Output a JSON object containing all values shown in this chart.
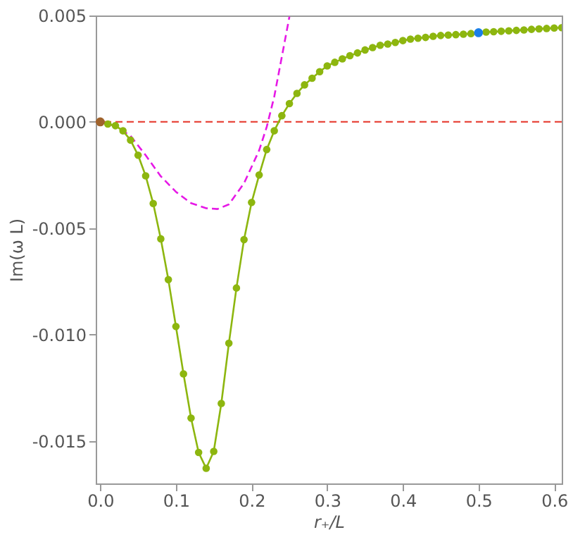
{
  "chart_data": {
    "type": "line",
    "xlabel": "r₊/L",
    "ylabel": "Im(ω L)",
    "xlim": [
      -0.006,
      0.61
    ],
    "ylim": [
      -0.017,
      0.005
    ],
    "xticks": [
      {
        "value": 0,
        "label": "0.0"
      },
      {
        "value": 0.1,
        "label": "0.1"
      },
      {
        "value": 0.2,
        "label": "0.2"
      },
      {
        "value": 0.3,
        "label": "0.3"
      },
      {
        "value": 0.4,
        "label": "0.4"
      },
      {
        "value": 0.5,
        "label": "0.5"
      },
      {
        "value": 0.6,
        "label": "0.6"
      }
    ],
    "yticks": [
      {
        "value": 0.005,
        "label": "0.005"
      },
      {
        "value": 0,
        "label": "0.000"
      },
      {
        "value": -0.005,
        "label": "-0.005"
      },
      {
        "value": -0.01,
        "label": "-0.010"
      },
      {
        "value": -0.015,
        "label": "-0.015"
      }
    ],
    "ref_lines": [
      {
        "axis": "y",
        "value": 0,
        "color": "#e8473c",
        "line_style": "dashed"
      }
    ],
    "series": [
      {
        "type": "line",
        "color": "#e619e6",
        "line_style": "dashed",
        "marker": "none",
        "x": [
          0,
          0.02,
          0.04,
          0.06,
          0.08,
          0.1,
          0.12,
          0.14,
          0.155,
          0.17,
          0.19,
          0.21,
          0.22,
          0.23,
          0.24,
          0.25
        ],
        "values": [
          0,
          -0.0002,
          -0.00066,
          -0.00157,
          -0.00256,
          -0.00329,
          -0.00382,
          -0.00406,
          -0.0041,
          -0.00388,
          -0.00289,
          -0.00134,
          -0.00024,
          0.00119,
          0.00306,
          0.00494
        ]
      },
      {
        "color": "#8db60f",
        "line_style": "solid",
        "marker": "circle",
        "x": [
          0,
          0.01,
          0.02,
          0.03,
          0.04,
          0.05,
          0.06,
          0.07,
          0.08,
          0.09,
          0.1,
          0.11,
          0.12,
          0.13,
          0.14,
          0.15,
          0.16,
          0.17,
          0.18,
          0.19,
          0.2,
          0.21,
          0.22,
          0.23,
          0.24,
          0.25,
          0.26,
          0.27,
          0.28,
          0.29,
          0.3,
          0.31,
          0.32,
          0.33,
          0.34,
          0.35,
          0.36,
          0.37,
          0.38,
          0.39,
          0.4,
          0.41,
          0.42,
          0.43,
          0.44,
          0.45,
          0.46,
          0.47,
          0.48,
          0.49,
          0.5,
          0.51,
          0.52,
          0.53,
          0.54,
          0.55,
          0.56,
          0.57,
          0.58,
          0.59,
          0.6,
          0.61
        ],
        "values": [
          0,
          -0.0001,
          -0.00018,
          -0.00042,
          -0.00086,
          -0.00157,
          -0.00254,
          -0.00384,
          -0.0055,
          -0.00742,
          -0.00962,
          -0.01185,
          -0.01393,
          -0.01554,
          -0.01629,
          -0.01549,
          -0.01324,
          -0.01041,
          -0.00781,
          -0.00554,
          -0.00379,
          -0.0025,
          -0.0013,
          -0.00042,
          0.00029,
          0.00086,
          0.00134,
          0.00174,
          0.00205,
          0.00236,
          0.00263,
          0.0028,
          0.00296,
          0.00311,
          0.00324,
          0.00338,
          0.00349,
          0.0036,
          0.00366,
          0.00373,
          0.00382,
          0.00389,
          0.00393,
          0.00397,
          0.00402,
          0.00406,
          0.00408,
          0.0041,
          0.00412,
          0.00415,
          0.00419,
          0.00422,
          0.00424,
          0.00426,
          0.00428,
          0.0043,
          0.00432,
          0.00435,
          0.00437,
          0.00439,
          0.00441,
          0.00443
        ]
      },
      {
        "type": "scatter",
        "color": "#a0632c",
        "marker": "circle",
        "x": [
          0
        ],
        "values": [
          0
        ]
      },
      {
        "type": "scatter",
        "color": "#1a7fe8",
        "marker": "circle",
        "x": [
          0.5
        ],
        "values": [
          0.00419
        ]
      }
    ]
  }
}
